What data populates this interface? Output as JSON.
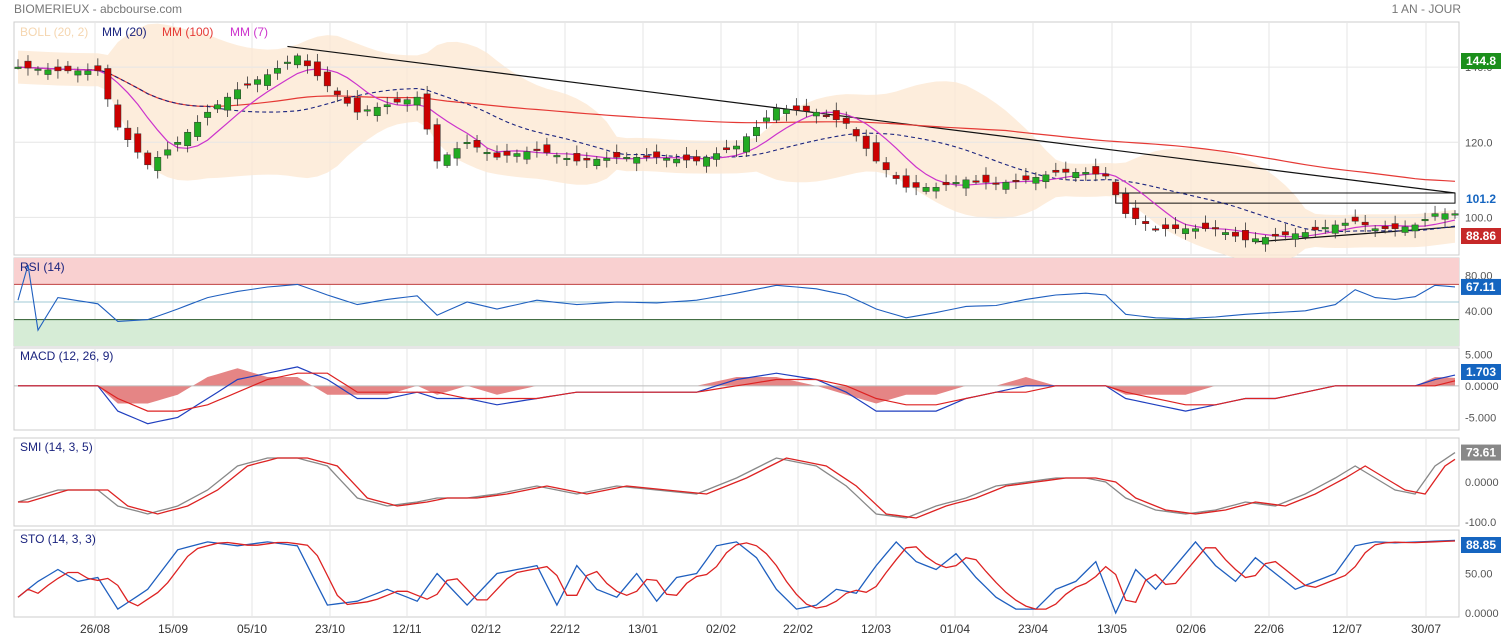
{
  "header": {
    "title": "BIOMERIEUX - abcbourse.com",
    "period": "1 AN - JOUR"
  },
  "colors": {
    "up": "#22aa22",
    "down": "#cc0000",
    "boll_fill": "#fde9d3",
    "mm20": "#1a237e",
    "mm100": "#e53935",
    "mm7": "#cc33cc",
    "rsi_line": "#1f5fbf",
    "macd_line": "#1f3fbf",
    "signal_line": "#dd2222",
    "hist": "#e07070",
    "badge_green": "#1b8f1b",
    "badge_blue": "#1565c0",
    "badge_red": "#c62828",
    "badge_grey": "#888888"
  },
  "x_dates": [
    "26/08",
    "15/09",
    "05/10",
    "23/10",
    "12/11",
    "02/12",
    "22/12",
    "13/01",
    "02/02",
    "22/02",
    "12/03",
    "01/04",
    "23/04",
    "13/05",
    "02/06",
    "22/06",
    "12/07",
    "30/07"
  ],
  "chart_data": [
    {
      "type": "candlestick",
      "name": "price",
      "legend": [
        {
          "label": "BOLL (20, 2)",
          "color": "#f5d6b0"
        },
        {
          "label": "MM (20)",
          "color": "#1a237e"
        },
        {
          "label": "MM (100)",
          "color": "#e53935"
        },
        {
          "label": "MM (7)",
          "color": "#cc33cc"
        }
      ],
      "y_ticks": [
        "140.0",
        "120.0",
        "100.0"
      ],
      "ylim": [
        90,
        152
      ],
      "anchors": [
        [
          0,
          140
        ],
        [
          4,
          139
        ],
        [
          8,
          139
        ],
        [
          10,
          124
        ],
        [
          13,
          114
        ],
        [
          16,
          120
        ],
        [
          19,
          128
        ],
        [
          22,
          134
        ],
        [
          25,
          138
        ],
        [
          28,
          143
        ],
        [
          31,
          135
        ],
        [
          34,
          128
        ],
        [
          37,
          130
        ],
        [
          40,
          132
        ],
        [
          42,
          115
        ],
        [
          45,
          120
        ],
        [
          48,
          116
        ],
        [
          52,
          118
        ],
        [
          56,
          115
        ],
        [
          60,
          116
        ],
        [
          64,
          116
        ],
        [
          68,
          115
        ],
        [
          72,
          119
        ],
        [
          76,
          129
        ],
        [
          80,
          128
        ],
        [
          83,
          125
        ],
        [
          86,
          115
        ],
        [
          89,
          108
        ],
        [
          92,
          108
        ],
        [
          95,
          110
        ],
        [
          98,
          109
        ],
        [
          101,
          110
        ],
        [
          104,
          112
        ],
        [
          107,
          112
        ],
        [
          109,
          111
        ],
        [
          111,
          101
        ],
        [
          114,
          97
        ],
        [
          117,
          97
        ],
        [
          120,
          97
        ],
        [
          123,
          94
        ],
        [
          126,
          95
        ],
        [
          129,
          96
        ],
        [
          132,
          98
        ],
        [
          134,
          99
        ],
        [
          136,
          97
        ],
        [
          138,
          97
        ],
        [
          140,
          98
        ],
        [
          142,
          101
        ],
        [
          144,
          101
        ]
      ],
      "annotations": {
        "last_price": "101.2",
        "high": "144.8",
        "low": "88.86"
      }
    },
    {
      "type": "line",
      "name": "RSI (14)",
      "y_ticks": [
        "80.00",
        "40.00"
      ],
      "ylim": [
        0,
        100
      ],
      "zones": [
        {
          "from": 70,
          "to": 100,
          "color": "#f9d0d0"
        },
        {
          "from": 0,
          "to": 30,
          "color": "#d6ecd6"
        }
      ],
      "anchors": [
        [
          0,
          52
        ],
        [
          1,
          92
        ],
        [
          2,
          18
        ],
        [
          4,
          55
        ],
        [
          8,
          48
        ],
        [
          10,
          28
        ],
        [
          13,
          30
        ],
        [
          16,
          42
        ],
        [
          19,
          55
        ],
        [
          22,
          62
        ],
        [
          25,
          67
        ],
        [
          28,
          70
        ],
        [
          31,
          58
        ],
        [
          34,
          47
        ],
        [
          37,
          53
        ],
        [
          40,
          57
        ],
        [
          42,
          35
        ],
        [
          45,
          50
        ],
        [
          48,
          42
        ],
        [
          52,
          52
        ],
        [
          56,
          47
        ],
        [
          60,
          50
        ],
        [
          64,
          49
        ],
        [
          68,
          52
        ],
        [
          72,
          60
        ],
        [
          76,
          69
        ],
        [
          80,
          65
        ],
        [
          83,
          58
        ],
        [
          86,
          42
        ],
        [
          89,
          32
        ],
        [
          92,
          38
        ],
        [
          95,
          45
        ],
        [
          98,
          46
        ],
        [
          101,
          53
        ],
        [
          104,
          58
        ],
        [
          107,
          60
        ],
        [
          109,
          58
        ],
        [
          111,
          36
        ],
        [
          114,
          32
        ],
        [
          117,
          31
        ],
        [
          120,
          33
        ],
        [
          123,
          36
        ],
        [
          126,
          38
        ],
        [
          129,
          40
        ],
        [
          132,
          47
        ],
        [
          134,
          64
        ],
        [
          136,
          55
        ],
        [
          138,
          53
        ],
        [
          140,
          56
        ],
        [
          142,
          69
        ],
        [
          144,
          67.11
        ]
      ],
      "annotations": {
        "last_value": "67.11"
      }
    },
    {
      "type": "line",
      "name": "MACD (12, 26, 9)",
      "y_ticks": [
        "5.000",
        "0.0000",
        "-5.000"
      ],
      "ylim": [
        -7,
        6
      ],
      "anchors_macd": [
        [
          0,
          0
        ],
        [
          4,
          0
        ],
        [
          8,
          0
        ],
        [
          10,
          -4
        ],
        [
          13,
          -6
        ],
        [
          16,
          -5
        ],
        [
          19,
          -2
        ],
        [
          22,
          1
        ],
        [
          25,
          2
        ],
        [
          28,
          3
        ],
        [
          31,
          1
        ],
        [
          34,
          -2
        ],
        [
          37,
          -2
        ],
        [
          40,
          -1
        ],
        [
          42,
          -2
        ],
        [
          45,
          -2
        ],
        [
          48,
          -3
        ],
        [
          52,
          -2
        ],
        [
          56,
          -1
        ],
        [
          60,
          -1
        ],
        [
          64,
          -1
        ],
        [
          68,
          -1
        ],
        [
          72,
          1
        ],
        [
          76,
          2
        ],
        [
          80,
          1
        ],
        [
          83,
          -1
        ],
        [
          86,
          -4
        ],
        [
          89,
          -4
        ],
        [
          92,
          -4
        ],
        [
          95,
          -2
        ],
        [
          98,
          -1
        ],
        [
          101,
          0
        ],
        [
          104,
          0
        ],
        [
          107,
          0
        ],
        [
          109,
          0
        ],
        [
          111,
          -2
        ],
        [
          114,
          -3
        ],
        [
          117,
          -4
        ],
        [
          120,
          -3
        ],
        [
          123,
          -2
        ],
        [
          126,
          -2
        ],
        [
          129,
          -1
        ],
        [
          132,
          0
        ],
        [
          134,
          0
        ],
        [
          136,
          0
        ],
        [
          138,
          0
        ],
        [
          140,
          0
        ],
        [
          142,
          1
        ],
        [
          144,
          1.703
        ]
      ],
      "anchors_signal": [
        [
          0,
          0
        ],
        [
          4,
          0
        ],
        [
          8,
          0
        ],
        [
          10,
          -2
        ],
        [
          13,
          -4
        ],
        [
          16,
          -4
        ],
        [
          19,
          -3
        ],
        [
          22,
          -1
        ],
        [
          25,
          1
        ],
        [
          28,
          2
        ],
        [
          31,
          2
        ],
        [
          34,
          -1
        ],
        [
          37,
          -1
        ],
        [
          40,
          -1
        ],
        [
          42,
          -1
        ],
        [
          45,
          -2
        ],
        [
          48,
          -2
        ],
        [
          52,
          -2
        ],
        [
          56,
          -1
        ],
        [
          60,
          -1
        ],
        [
          64,
          -1
        ],
        [
          68,
          -1
        ],
        [
          72,
          0
        ],
        [
          76,
          1
        ],
        [
          80,
          1
        ],
        [
          83,
          0
        ],
        [
          86,
          -2
        ],
        [
          89,
          -3
        ],
        [
          92,
          -3
        ],
        [
          95,
          -2
        ],
        [
          98,
          -1
        ],
        [
          101,
          -1
        ],
        [
          104,
          0
        ],
        [
          107,
          0
        ],
        [
          109,
          0
        ],
        [
          111,
          -1
        ],
        [
          114,
          -2
        ],
        [
          117,
          -3
        ],
        [
          120,
          -3
        ],
        [
          123,
          -2
        ],
        [
          126,
          -2
        ],
        [
          129,
          -1
        ],
        [
          132,
          0
        ],
        [
          134,
          0
        ],
        [
          136,
          0
        ],
        [
          138,
          0
        ],
        [
          140,
          0
        ],
        [
          142,
          0
        ],
        [
          144,
          0.8
        ]
      ],
      "annotations": {
        "last_value": "1.703"
      }
    },
    {
      "type": "line",
      "name": "SMI (14, 3, 5)",
      "y_ticks": [
        "0.0000",
        "-100.0"
      ],
      "ylim": [
        -110,
        110
      ],
      "anchors": [
        [
          0,
          -50
        ],
        [
          4,
          -20
        ],
        [
          8,
          -20
        ],
        [
          10,
          -60
        ],
        [
          13,
          -80
        ],
        [
          16,
          -60
        ],
        [
          19,
          -20
        ],
        [
          22,
          40
        ],
        [
          25,
          60
        ],
        [
          28,
          60
        ],
        [
          31,
          40
        ],
        [
          34,
          -40
        ],
        [
          37,
          -60
        ],
        [
          40,
          -50
        ],
        [
          42,
          -40
        ],
        [
          45,
          -40
        ],
        [
          48,
          -30
        ],
        [
          52,
          -10
        ],
        [
          56,
          -30
        ],
        [
          60,
          -10
        ],
        [
          64,
          -20
        ],
        [
          68,
          -30
        ],
        [
          72,
          10
        ],
        [
          76,
          60
        ],
        [
          80,
          40
        ],
        [
          83,
          -10
        ],
        [
          86,
          -80
        ],
        [
          89,
          -90
        ],
        [
          92,
          -60
        ],
        [
          95,
          -40
        ],
        [
          98,
          -10
        ],
        [
          101,
          0
        ],
        [
          104,
          10
        ],
        [
          107,
          10
        ],
        [
          109,
          0
        ],
        [
          111,
          -40
        ],
        [
          114,
          -70
        ],
        [
          117,
          -80
        ],
        [
          120,
          -70
        ],
        [
          123,
          -50
        ],
        [
          126,
          -60
        ],
        [
          129,
          -30
        ],
        [
          132,
          10
        ],
        [
          134,
          40
        ],
        [
          136,
          10
        ],
        [
          138,
          -20
        ],
        [
          140,
          -30
        ],
        [
          142,
          40
        ],
        [
          144,
          73.61
        ]
      ],
      "annotations": {
        "last_value": "73.61"
      }
    },
    {
      "type": "line",
      "name": "STO (14, 3, 3)",
      "y_ticks": [
        "50.00",
        "0.0000"
      ],
      "ylim": [
        -5,
        105
      ],
      "anchors": [
        [
          0,
          20
        ],
        [
          2,
          40
        ],
        [
          4,
          55
        ],
        [
          6,
          40
        ],
        [
          8,
          45
        ],
        [
          10,
          5
        ],
        [
          13,
          30
        ],
        [
          16,
          80
        ],
        [
          19,
          90
        ],
        [
          22,
          85
        ],
        [
          25,
          90
        ],
        [
          28,
          85
        ],
        [
          31,
          10
        ],
        [
          34,
          15
        ],
        [
          37,
          30
        ],
        [
          40,
          15
        ],
        [
          42,
          50
        ],
        [
          45,
          10
        ],
        [
          48,
          50
        ],
        [
          52,
          60
        ],
        [
          54,
          10
        ],
        [
          56,
          60
        ],
        [
          58,
          30
        ],
        [
          60,
          20
        ],
        [
          62,
          50
        ],
        [
          64,
          15
        ],
        [
          66,
          45
        ],
        [
          68,
          50
        ],
        [
          70,
          85
        ],
        [
          72,
          90
        ],
        [
          74,
          70
        ],
        [
          76,
          30
        ],
        [
          78,
          5
        ],
        [
          80,
          10
        ],
        [
          82,
          30
        ],
        [
          84,
          25
        ],
        [
          86,
          60
        ],
        [
          88,
          90
        ],
        [
          90,
          65
        ],
        [
          92,
          55
        ],
        [
          94,
          75
        ],
        [
          96,
          45
        ],
        [
          98,
          20
        ],
        [
          100,
          5
        ],
        [
          102,
          5
        ],
        [
          104,
          30
        ],
        [
          106,
          40
        ],
        [
          108,
          65
        ],
        [
          110,
          0
        ],
        [
          112,
          55
        ],
        [
          114,
          30
        ],
        [
          116,
          60
        ],
        [
          118,
          90
        ],
        [
          120,
          60
        ],
        [
          122,
          40
        ],
        [
          124,
          70
        ],
        [
          126,
          50
        ],
        [
          128,
          30
        ],
        [
          130,
          40
        ],
        [
          132,
          50
        ],
        [
          134,
          85
        ],
        [
          136,
          90
        ],
        [
          138,
          88.85
        ]
      ],
      "annotations": {
        "last_value": "88.85"
      }
    }
  ]
}
